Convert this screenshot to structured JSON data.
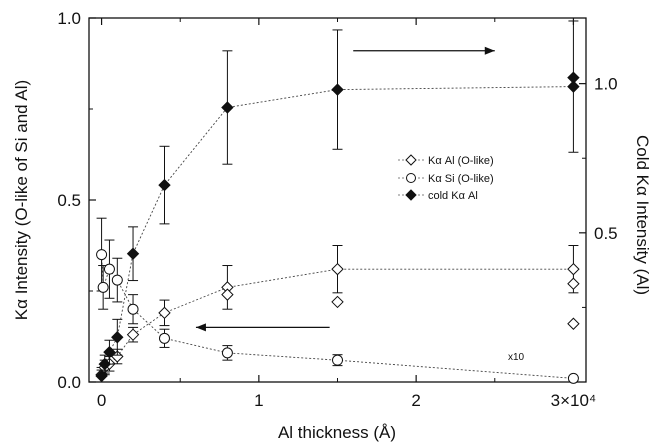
{
  "chart_data": {
    "type": "scatter",
    "title": "",
    "xlabel": "Al thickness (Å)",
    "ylabel_left": "Kα Intensity (O-like of Si and Al)",
    "ylabel_right": "Cold Kα  Intensity  (Al)",
    "x_tick_labels": [
      "0",
      "1",
      "2",
      "3×10⁴"
    ],
    "x_tick_values": [
      0,
      1,
      2,
      3
    ],
    "y_left_tick_labels": [
      "0.0",
      "0.5",
      "1.0"
    ],
    "y_left_tick_values": [
      0,
      0.5,
      1.0
    ],
    "y_right_tick_labels": [
      "0.5",
      "1.0"
    ],
    "y_right_tick_values": [
      0.5,
      1.0
    ],
    "xlim": [
      -0.08,
      3.08
    ],
    "ylim_left": [
      0,
      1.0
    ],
    "ylim_right": [
      0,
      1.22
    ],
    "grid": false,
    "legend_position": "center-right",
    "annotation_x10": "x10",
    "series": [
      {
        "name": "Kα Al (O-like)",
        "marker": "open-diamond",
        "axis": "left",
        "points": [
          {
            "x": 0.0,
            "y": 0.02,
            "err": 0.02
          },
          {
            "x": 0.02,
            "y": 0.04,
            "err": 0.02
          },
          {
            "x": 0.05,
            "y": 0.05,
            "err": 0.02
          },
          {
            "x": 0.1,
            "y": 0.07,
            "err": 0.02
          },
          {
            "x": 0.2,
            "y": 0.13,
            "err": 0.02
          },
          {
            "x": 0.4,
            "y": 0.19,
            "err": 0.035
          },
          {
            "x": 0.8,
            "y": 0.26,
            "err": 0.06
          },
          {
            "x": 1.5,
            "y": 0.31,
            "err": 0.065
          },
          {
            "x": 3.0,
            "y": 0.31,
            "err": 0.065
          }
        ],
        "extra_points": [
          {
            "x": 0.8,
            "y": 0.24
          },
          {
            "x": 1.5,
            "y": 0.22
          },
          {
            "x": 3.0,
            "y": 0.27
          },
          {
            "x": 3.0,
            "y": 0.16
          }
        ]
      },
      {
        "name": "Kα Si (O-like)",
        "marker": "open-circle",
        "axis": "left",
        "points": [
          {
            "x": 0.0,
            "y": 0.35,
            "err": 0.1
          },
          {
            "x": 0.01,
            "y": 0.26,
            "err": 0.06
          },
          {
            "x": 0.05,
            "y": 0.31,
            "err": 0.08
          },
          {
            "x": 0.1,
            "y": 0.28,
            "err": 0.06
          },
          {
            "x": 0.2,
            "y": 0.2,
            "err": 0.04
          },
          {
            "x": 0.4,
            "y": 0.12,
            "err": 0.025
          },
          {
            "x": 0.8,
            "y": 0.08,
            "err": 0.02
          },
          {
            "x": 1.5,
            "y": 0.06,
            "err": 0.015
          },
          {
            "x": 3.0,
            "y": 0.01,
            "err": 0.005
          }
        ]
      },
      {
        "name": "cold Kα Al",
        "marker": "filled-diamond",
        "axis": "right",
        "points": [
          {
            "x": 0.0,
            "y": 0.02,
            "err": 0.02
          },
          {
            "x": 0.02,
            "y": 0.06,
            "err": 0.03
          },
          {
            "x": 0.05,
            "y": 0.1,
            "err": 0.04
          },
          {
            "x": 0.1,
            "y": 0.15,
            "err": 0.06
          },
          {
            "x": 0.2,
            "y": 0.43,
            "err": 0.09
          },
          {
            "x": 0.4,
            "y": 0.66,
            "err": 0.13
          },
          {
            "x": 0.8,
            "y": 0.92,
            "err": 0.19
          },
          {
            "x": 1.5,
            "y": 0.98,
            "err": 0.2
          },
          {
            "x": 3.0,
            "y": 0.99,
            "err": 0.22
          }
        ],
        "extra_points": [
          {
            "x": 3.0,
            "y": 1.02
          }
        ]
      }
    ],
    "arrows": [
      {
        "direction": "right",
        "from": [
          1.6,
          0.91
        ],
        "to": [
          2.5,
          0.91
        ],
        "axis": "left"
      },
      {
        "direction": "left",
        "from": [
          1.45,
          0.15
        ],
        "to": [
          0.6,
          0.15
        ],
        "axis": "left"
      }
    ]
  }
}
